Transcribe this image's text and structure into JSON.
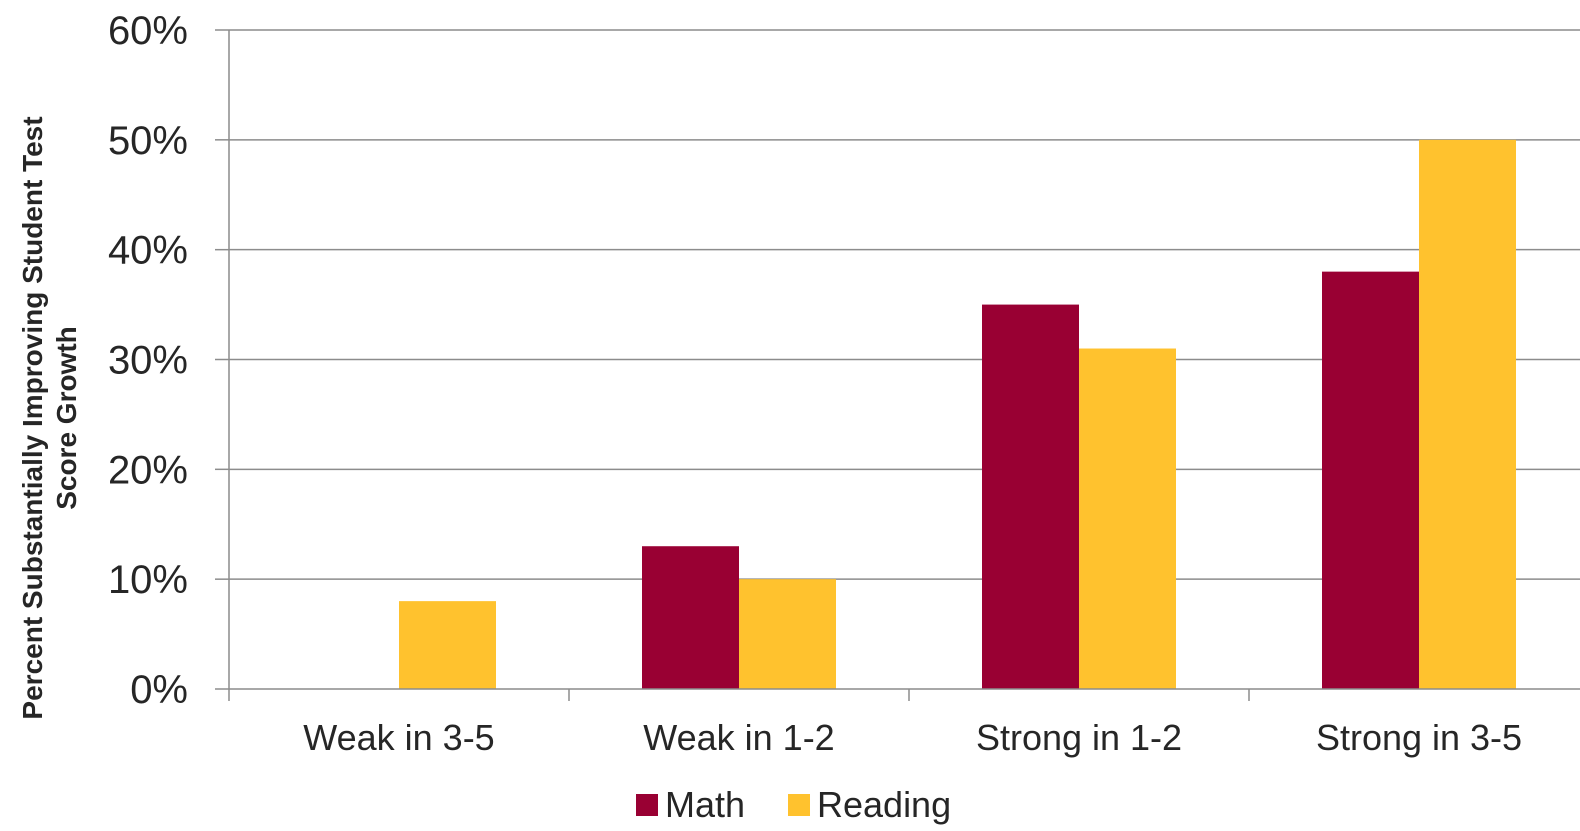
{
  "chart_data": {
    "type": "bar",
    "title": "",
    "xlabel": "",
    "ylabel_lines": [
      "Percent Substantially Improving Student Test",
      "Score Growth"
    ],
    "categories": [
      "Weak in 3-5",
      "Weak in 1-2",
      "Strong in 1-2",
      "Strong in 3-5"
    ],
    "series": [
      {
        "name": "Math",
        "values": [
          0,
          13,
          35,
          38
        ],
        "color": "#990033"
      },
      {
        "name": "Reading",
        "values": [
          8,
          10,
          31,
          50
        ],
        "color": "#FFC22E"
      }
    ],
    "ylim": [
      0,
      60
    ],
    "yticks": [
      0,
      10,
      20,
      30,
      40,
      50,
      60
    ],
    "ytick_labels": [
      "0%",
      "10%",
      "20%",
      "30%",
      "40%",
      "50%",
      "60%"
    ],
    "grid": true,
    "legend_position": "bottom-center"
  }
}
